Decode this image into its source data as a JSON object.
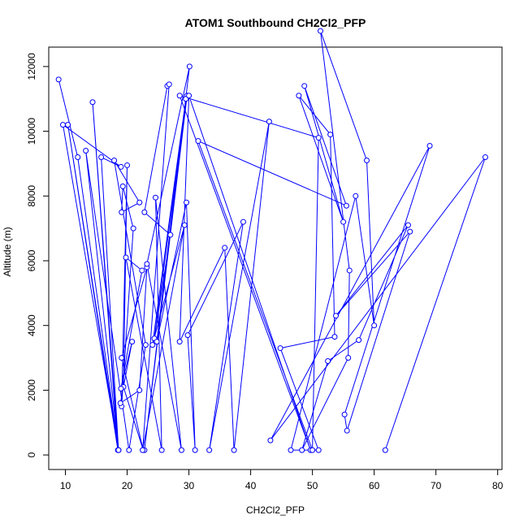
{
  "chart_data": {
    "type": "line",
    "title": "ATOM1 Southbound CH2Cl2_PFP",
    "xlabel": "CH2Cl2_PFP",
    "ylabel": "Altitude (m)",
    "xlim": [
      7.3,
      80.7
    ],
    "ylim": [
      -450,
      12600
    ],
    "xticks": [
      10,
      20,
      30,
      40,
      50,
      60,
      70,
      80
    ],
    "yticks": [
      0,
      2000,
      4000,
      6000,
      8000,
      10000,
      12000
    ],
    "color": "#0000ff",
    "markers": "open-circle",
    "series": [
      {
        "x": [
          8.9,
          12.0,
          18.6,
          10.4,
          18.5,
          14.4,
          18.6,
          15.8,
          19.0,
          9.6,
          18.6,
          13.3,
          20.3,
          23.0,
          17.9,
          22.0,
          19.1,
          19.3,
          21.0,
          19.1,
          20.0,
          19.4,
          22.6,
          19.1,
          23.2,
          22.0,
          18.9,
          20.8,
          19.0,
          22.4,
          19.8,
          25.6,
          24.6,
          28.8,
          23.2,
          30.1,
          22.8,
          29.7,
          24.4,
          27.0,
          22.8,
          26.5,
          26.8,
          22.5,
          29.3,
          24.1,
          29.5,
          24.8,
          29.6,
          31.0,
          29.8,
          38.8,
          33.3,
          43.0,
          37.3,
          35.8,
          28.5,
          30.0,
          49.7,
          28.5,
          51.0,
          50.0,
          31.5,
          55.5,
          48.7,
          55.0,
          47.8,
          52.9,
          53.6,
          44.8,
          51.0,
          46.5,
          57.0,
          60.0,
          58.8,
          51.3,
          56.0,
          55.8,
          48.3,
          52.5,
          57.5,
          65.5,
          53.8,
          65.8,
          55.6,
          55.2,
          69.0,
          43.2,
          78.0,
          61.8
        ],
        "y": [
          11600,
          9200,
          150,
          10200,
          150,
          10900,
          150,
          9200,
          8900,
          10200,
          150,
          9400,
          150,
          3400,
          9100,
          7800,
          7500,
          8300,
          7000,
          1500,
          8950,
          2100,
          150,
          3000,
          5800,
          2000,
          1600,
          3500,
          2050,
          5700,
          6100,
          150,
          7950,
          150,
          5900,
          12000,
          150,
          11100,
          3600,
          6800,
          7500,
          11400,
          11450,
          150,
          7100,
          3400,
          11000,
          3500,
          7800,
          150,
          3700,
          7200,
          150,
          10300,
          150,
          6400,
          3500,
          11100,
          150,
          11100,
          9800,
          150,
          9700,
          7700,
          11400,
          7200,
          11100,
          9900,
          3650,
          3300,
          150,
          150,
          8000,
          4000,
          9100,
          13100,
          5700,
          3000,
          150,
          2900,
          3550,
          7100,
          4300,
          6900,
          750,
          1250,
          9550,
          450,
          9200,
          150
        ]
      }
    ]
  }
}
